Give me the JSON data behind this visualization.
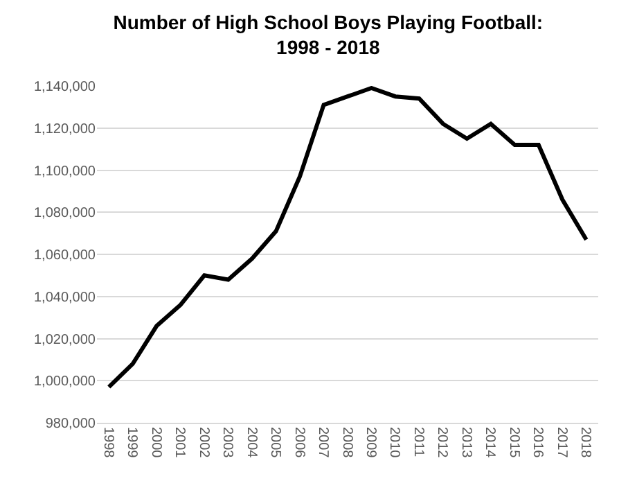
{
  "chart_data": {
    "type": "line",
    "title": "Number of High School Boys Playing Football:\n1998 - 2018",
    "categories": [
      "1998",
      "1999",
      "2000",
      "2001",
      "2002",
      "2003",
      "2004",
      "2005",
      "2006",
      "2007",
      "2008",
      "2009",
      "2010",
      "2011",
      "2012",
      "2013",
      "2014",
      "2015",
      "2016",
      "2017",
      "2018"
    ],
    "series": [
      {
        "color": "#000000",
        "values": [
          997000,
          1008000,
          1026000,
          1036000,
          1050000,
          1048000,
          1058000,
          1071000,
          1097000,
          1131000,
          1135000,
          1139000,
          1135000,
          1134000,
          1122000,
          1115000,
          1122000,
          1112000,
          1112000,
          1086000,
          1067000
        ]
      }
    ],
    "ylim": [
      980000,
      1140000
    ],
    "yticks": [
      {
        "value": 980000,
        "label": "980,000"
      },
      {
        "value": 1000000,
        "label": "1,000,000"
      },
      {
        "value": 1020000,
        "label": "1,020,000"
      },
      {
        "value": 1040000,
        "label": "1,040,000"
      },
      {
        "value": 1060000,
        "label": "1,060,000"
      },
      {
        "value": 1080000,
        "label": "1,080,000"
      },
      {
        "value": 1100000,
        "label": "1,100,000"
      },
      {
        "value": 1120000,
        "label": "1,120,000"
      },
      {
        "value": 1140000,
        "label": "1,140,000"
      }
    ],
    "grid": "y",
    "marker": "none",
    "line_style": "solid"
  }
}
